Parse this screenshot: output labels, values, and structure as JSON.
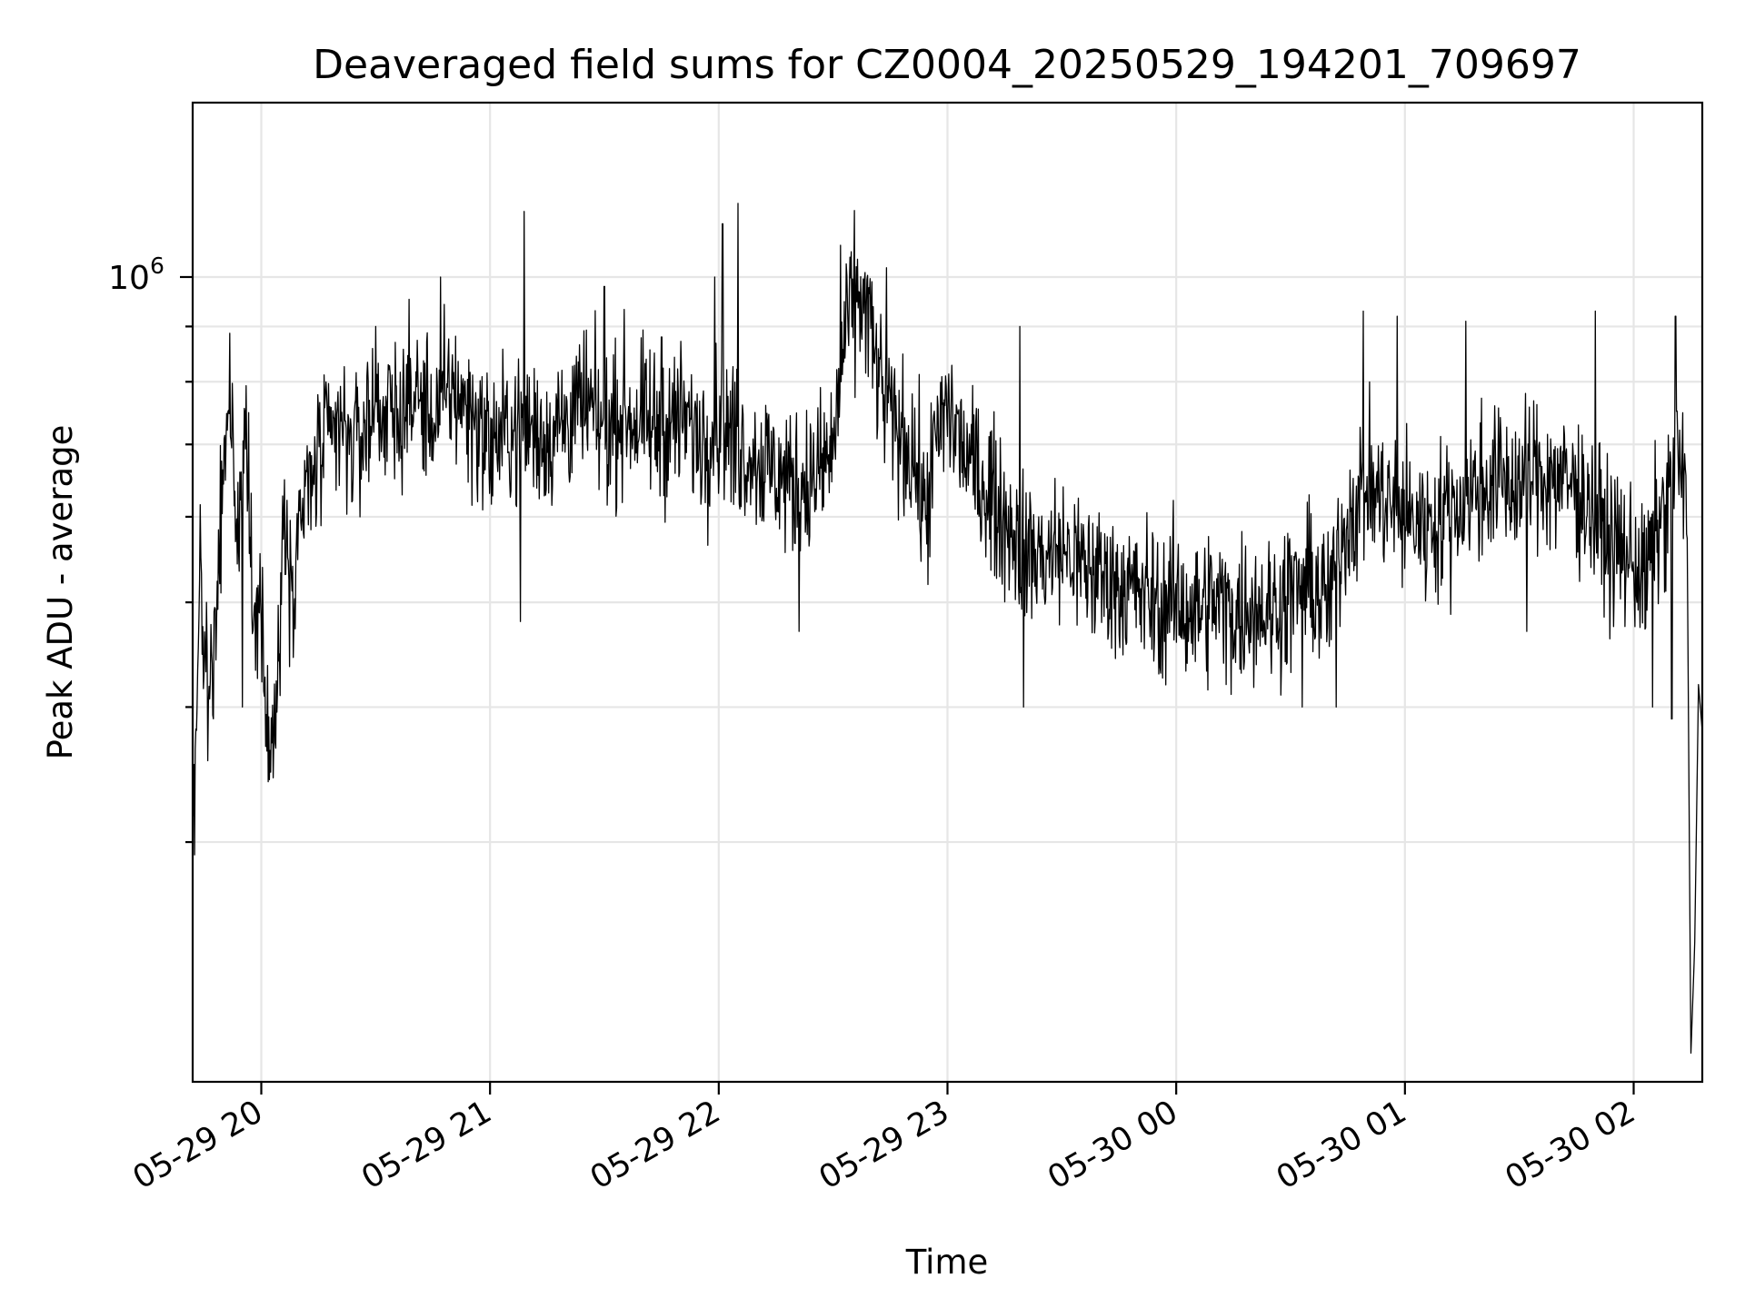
{
  "chart_data": {
    "type": "line",
    "title": "Deaveraged field sums for CZ0004_20250529_194201_709697",
    "xlabel": "Time",
    "ylabel": "Peak ADU - average",
    "y_scale": "log",
    "grid": true,
    "legend": "none",
    "x_range": [
      "05-29 19:42",
      "05-30 02:18"
    ],
    "y_range": [
      180000,
      1450000
    ],
    "x_ticks": [
      "05-29 20",
      "05-29 21",
      "05-29 22",
      "05-29 23",
      "05-30 00",
      "05-30 01",
      "05-30 02"
    ],
    "y_tick_labels": [
      {
        "base": "10",
        "exp": "6",
        "value": 1000000
      }
    ],
    "y_minor_ticks": [
      300000,
      400000,
      500000,
      600000,
      700000,
      800000,
      900000
    ],
    "colors": {
      "line": "#000000",
      "grid": "#e6e6e6"
    },
    "series": [
      {
        "points": [
          [
            "05-29 19:42",
            300000
          ],
          [
            "05-29 19:44",
            520000
          ],
          [
            "05-29 19:46",
            420000
          ],
          [
            "05-29 19:48",
            470000
          ],
          [
            "05-29 19:50",
            660000
          ],
          [
            "05-29 19:52",
            760000
          ],
          [
            "05-29 19:54",
            560000
          ],
          [
            "05-29 19:56",
            740000
          ],
          [
            "05-29 19:58",
            450000
          ],
          [
            "05-29 20:00",
            520000
          ],
          [
            "05-29 20:02",
            360000
          ],
          [
            "05-29 20:04",
            400000
          ],
          [
            "05-29 20:06",
            630000
          ],
          [
            "05-29 20:08",
            520000
          ],
          [
            "05-29 20:10",
            600000
          ],
          [
            "05-29 20:15",
            680000
          ],
          [
            "05-29 20:20",
            720000
          ],
          [
            "05-29 20:25",
            700000
          ],
          [
            "05-29 20:30",
            760000
          ],
          [
            "05-29 20:35",
            740000
          ],
          [
            "05-29 20:40",
            780000
          ],
          [
            "05-29 20:45",
            740000
          ],
          [
            "05-29 20:50",
            790000
          ],
          [
            "05-29 20:55",
            750000
          ],
          [
            "05-29 21:00",
            700000
          ],
          [
            "05-29 21:05",
            720000
          ],
          [
            "05-29 21:10",
            730000
          ],
          [
            "05-29 21:15",
            710000
          ],
          [
            "05-29 21:20",
            740000
          ],
          [
            "05-29 21:25",
            760000
          ],
          [
            "05-29 21:30",
            720000
          ],
          [
            "05-29 21:35",
            750000
          ],
          [
            "05-29 21:40",
            730000
          ],
          [
            "05-29 21:45",
            720000
          ],
          [
            "05-29 21:50",
            740000
          ],
          [
            "05-29 21:55",
            710000
          ],
          [
            "05-29 22:00",
            730000
          ],
          [
            "05-29 22:05",
            700000
          ],
          [
            "05-29 22:10",
            680000
          ],
          [
            "05-29 22:15",
            660000
          ],
          [
            "05-29 22:20",
            640000
          ],
          [
            "05-29 22:25",
            650000
          ],
          [
            "05-29 22:30",
            690000
          ],
          [
            "05-29 22:33",
            880000
          ],
          [
            "05-29 22:36",
            960000
          ],
          [
            "05-29 22:39",
            930000
          ],
          [
            "05-29 22:42",
            800000
          ],
          [
            "05-29 22:45",
            740000
          ],
          [
            "05-29 22:48",
            710000
          ],
          [
            "05-29 22:51",
            690000
          ],
          [
            "05-29 22:54",
            600000
          ],
          [
            "05-29 22:57",
            700000
          ],
          [
            "05-29 23:00",
            760000
          ],
          [
            "05-29 23:05",
            680000
          ],
          [
            "05-29 23:10",
            640000
          ],
          [
            "05-29 23:15",
            600000
          ],
          [
            "05-29 23:20",
            560000
          ],
          [
            "05-29 23:25",
            550000
          ],
          [
            "05-29 23:30",
            560000
          ],
          [
            "05-29 23:35",
            540000
          ],
          [
            "05-29 23:40",
            530000
          ],
          [
            "05-29 23:45",
            520000
          ],
          [
            "05-29 23:50",
            510000
          ],
          [
            "05-29 23:55",
            500000
          ],
          [
            "05-30 00:00",
            500000
          ],
          [
            "05-30 00:05",
            490000
          ],
          [
            "05-30 00:10",
            500000
          ],
          [
            "05-30 00:15",
            490000
          ],
          [
            "05-30 00:20",
            500000
          ],
          [
            "05-30 00:25",
            490000
          ],
          [
            "05-30 00:30",
            510000
          ],
          [
            "05-30 00:35",
            520000
          ],
          [
            "05-30 00:40",
            500000
          ],
          [
            "05-30 00:45",
            600000
          ],
          [
            "05-30 00:50",
            640000
          ],
          [
            "05-30 00:55",
            620000
          ],
          [
            "05-30 01:00",
            600000
          ],
          [
            "05-30 01:05",
            590000
          ],
          [
            "05-30 01:10",
            600000
          ],
          [
            "05-30 01:15",
            620000
          ],
          [
            "05-30 01:20",
            640000
          ],
          [
            "05-30 01:25",
            650000
          ],
          [
            "05-30 01:30",
            640000
          ],
          [
            "05-30 01:35",
            660000
          ],
          [
            "05-30 01:40",
            650000
          ],
          [
            "05-30 01:45",
            640000
          ],
          [
            "05-30 01:50",
            600000
          ],
          [
            "05-30 01:55",
            560000
          ],
          [
            "05-30 02:00",
            550000
          ],
          [
            "05-30 02:03",
            520000
          ],
          [
            "05-30 02:06",
            580000
          ],
          [
            "05-30 02:09",
            620000
          ],
          [
            "05-30 02:12",
            680000
          ],
          [
            "05-30 02:14",
            600000
          ],
          [
            "05-30 02:15",
            190000
          ],
          [
            "05-30 02:16",
            240000
          ],
          [
            "05-30 02:17",
            420000
          ],
          [
            "05-30 02:18",
            380000
          ]
        ]
      }
    ],
    "spikes": [
      [
        "05-29 21:09",
        1150000
      ],
      [
        "05-29 21:30",
        980000
      ],
      [
        "05-29 22:01",
        1120000
      ],
      [
        "05-29 22:05",
        1170000
      ],
      [
        "05-29 22:32",
        1070000
      ],
      [
        "05-29 22:44",
        1020000
      ],
      [
        "05-29 23:19",
        900000
      ],
      [
        "05-30 00:49",
        930000
      ],
      [
        "05-30 00:58",
        920000
      ],
      [
        "05-30 01:16",
        910000
      ],
      [
        "05-30 01:50",
        930000
      ],
      [
        "05-30 02:11",
        920000
      ],
      [
        "05-29 20:30",
        900000
      ],
      [
        "05-29 20:47",
        1000000
      ],
      [
        "05-29 21:45",
        880000
      ],
      [
        "05-29 21:59",
        1000000
      ]
    ],
    "dips": [
      [
        "05-29 19:55",
        400000
      ],
      [
        "05-29 20:05",
        410000
      ],
      [
        "05-29 21:08",
        480000
      ],
      [
        "05-29 22:21",
        470000
      ],
      [
        "05-29 23:20",
        400000
      ],
      [
        "05-29 23:56",
        430000
      ],
      [
        "05-30 00:17",
        430000
      ],
      [
        "05-30 00:33",
        400000
      ],
      [
        "05-30 00:42",
        400000
      ],
      [
        "05-30 01:32",
        470000
      ],
      [
        "05-30 02:05",
        400000
      ],
      [
        "05-30 02:10",
        390000
      ]
    ]
  }
}
